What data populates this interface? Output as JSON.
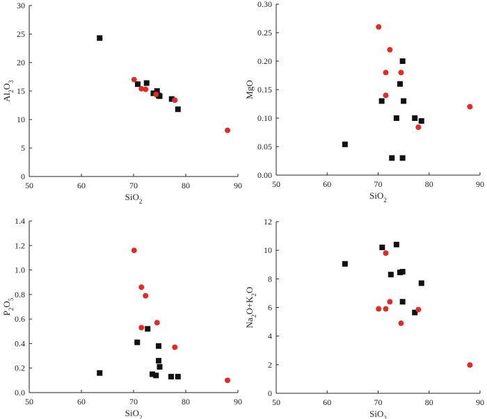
{
  "figure": {
    "marker_colors": {
      "square": "#111111",
      "circle": "#e02b27"
    }
  },
  "chart_data": [
    {
      "type": "scatter",
      "xlabel": "SiO2",
      "ylabel": "Al2O3",
      "xlim": [
        50,
        90
      ],
      "ylim": [
        0,
        30
      ],
      "xticks": [
        50,
        60,
        70,
        80,
        90
      ],
      "yticks": [
        0,
        5,
        10,
        15,
        20,
        25,
        30
      ],
      "grid": false,
      "series": [
        {
          "marker": "square",
          "color": "#111111",
          "points": [
            [
              63.5,
              24.3
            ],
            [
              70.8,
              16.2
            ],
            [
              72.5,
              16.4
            ],
            [
              73.8,
              14.6
            ],
            [
              74.5,
              15.0
            ],
            [
              74.8,
              14.2
            ],
            [
              75.0,
              14.1
            ],
            [
              77.3,
              13.6
            ],
            [
              78.5,
              11.8
            ]
          ]
        },
        {
          "marker": "circle",
          "color": "#e02b27",
          "points": [
            [
              70.1,
              17.0
            ],
            [
              71.5,
              15.4
            ],
            [
              72.3,
              15.3
            ],
            [
              74.3,
              14.4
            ],
            [
              77.9,
              13.4
            ],
            [
              88.0,
              8.1
            ]
          ]
        }
      ]
    },
    {
      "type": "scatter",
      "xlabel": "SiO2",
      "ylabel": "MgO",
      "xlim": [
        50,
        90
      ],
      "ylim": [
        0,
        0.3
      ],
      "xticks": [
        50,
        60,
        70,
        80,
        90
      ],
      "yticks": [
        0.0,
        0.05,
        0.1,
        0.15,
        0.2,
        0.25,
        0.3
      ],
      "grid": false,
      "series": [
        {
          "marker": "square",
          "color": "#111111",
          "points": [
            [
              63.5,
              0.054
            ],
            [
              70.7,
              0.13
            ],
            [
              72.7,
              0.03
            ],
            [
              73.6,
              0.1
            ],
            [
              74.3,
              0.16
            ],
            [
              74.8,
              0.2
            ],
            [
              75.0,
              0.13
            ],
            [
              74.8,
              0.03
            ],
            [
              77.2,
              0.1
            ],
            [
              78.5,
              0.095
            ]
          ]
        },
        {
          "marker": "circle",
          "color": "#e02b27",
          "points": [
            [
              70.1,
              0.26
            ],
            [
              71.5,
              0.14
            ],
            [
              71.5,
              0.18
            ],
            [
              72.3,
              0.22
            ],
            [
              74.5,
              0.18
            ],
            [
              77.9,
              0.084
            ],
            [
              88.0,
              0.12
            ]
          ]
        }
      ]
    },
    {
      "type": "scatter",
      "xlabel": "SiO2",
      "ylabel": "P2O5",
      "xlim": [
        50,
        90
      ],
      "ylim": [
        0,
        1.4
      ],
      "xticks": [
        50,
        60,
        70,
        80,
        90
      ],
      "yticks": [
        0.0,
        0.2,
        0.4,
        0.6,
        0.8,
        1.0,
        1.2,
        1.4
      ],
      "grid": false,
      "series": [
        {
          "marker": "square",
          "color": "#111111",
          "points": [
            [
              63.5,
              0.16
            ],
            [
              70.7,
              0.41
            ],
            [
              72.7,
              0.52
            ],
            [
              73.6,
              0.15
            ],
            [
              74.3,
              0.14
            ],
            [
              74.8,
              0.38
            ],
            [
              74.8,
              0.26
            ],
            [
              75.0,
              0.21
            ],
            [
              77.2,
              0.13
            ],
            [
              78.5,
              0.13
            ]
          ]
        },
        {
          "marker": "circle",
          "color": "#e02b27",
          "points": [
            [
              70.1,
              1.16
            ],
            [
              71.5,
              0.86
            ],
            [
              72.3,
              0.79
            ],
            [
              71.5,
              0.53
            ],
            [
              74.5,
              0.57
            ],
            [
              77.9,
              0.37
            ],
            [
              88.0,
              0.1
            ]
          ]
        }
      ]
    },
    {
      "type": "scatter",
      "xlabel": "SiO2",
      "ylabel": "Na2O+K2O",
      "xlim": [
        50,
        90
      ],
      "ylim": [
        0,
        12
      ],
      "xticks": [
        50,
        60,
        70,
        80,
        90
      ],
      "yticks": [
        0,
        2,
        4,
        6,
        8,
        10,
        12
      ],
      "grid": false,
      "series": [
        {
          "marker": "square",
          "color": "#111111",
          "points": [
            [
              63.5,
              9.05
            ],
            [
              70.8,
              10.2
            ],
            [
              73.6,
              10.4
            ],
            [
              72.5,
              8.3
            ],
            [
              74.3,
              8.45
            ],
            [
              74.8,
              8.5
            ],
            [
              74.8,
              6.4
            ],
            [
              77.2,
              5.65
            ],
            [
              78.5,
              7.7
            ]
          ]
        },
        {
          "marker": "circle",
          "color": "#e02b27",
          "points": [
            [
              70.1,
              5.9
            ],
            [
              71.5,
              9.8
            ],
            [
              71.5,
              5.9
            ],
            [
              72.3,
              6.4
            ],
            [
              74.5,
              4.9
            ],
            [
              77.9,
              5.85
            ],
            [
              88.0,
              1.98
            ]
          ]
        }
      ]
    }
  ]
}
